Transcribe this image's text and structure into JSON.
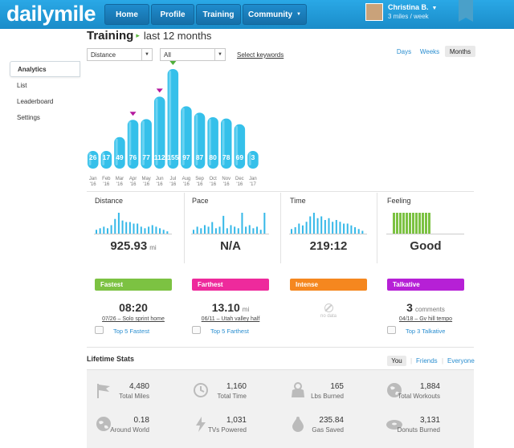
{
  "app": {
    "logo": "dailymile"
  },
  "nav": [
    {
      "label": "Home"
    },
    {
      "label": "Profile"
    },
    {
      "label": "Training"
    },
    {
      "label": "Community",
      "caret": "▼"
    }
  ],
  "user": {
    "name": "Christina B.",
    "caret": "▼",
    "rate": "3 miles / week"
  },
  "sidebar": {
    "items": [
      {
        "label": "Analytics",
        "active": true
      },
      {
        "label": "List"
      },
      {
        "label": "Leaderboard"
      },
      {
        "label": "Settings"
      }
    ]
  },
  "page": {
    "title": "Training",
    "subtitle": "last 12 months"
  },
  "filters": {
    "metric": "Distance",
    "activity": "All",
    "keywords_link": "Select keywords"
  },
  "range": {
    "options": [
      "Days",
      "Weeks",
      "Months"
    ],
    "selected": "Months"
  },
  "chart_data": {
    "type": "bar",
    "categories": [
      "Jan '16",
      "Feb '16",
      "Mar '16",
      "Apr '16",
      "May '16",
      "Jun '16",
      "Jul '16",
      "Aug '16",
      "Sep '16",
      "Oct '16",
      "Nov '16",
      "Dec '16",
      "Jan '17"
    ],
    "month_labels": [
      "Jan",
      "Feb",
      "Mar",
      "Apr",
      "May",
      "Jun",
      "Jul",
      "Aug",
      "Sep",
      "Oct",
      "Nov",
      "Dec",
      "Jan"
    ],
    "year_labels": [
      "'16",
      "'16",
      "'16",
      "'16",
      "'16",
      "'16",
      "'16",
      "'16",
      "'16",
      "'16",
      "'16",
      "'16",
      "'17"
    ],
    "values": [
      26,
      17,
      49,
      76,
      77,
      112,
      155,
      97,
      87,
      80,
      78,
      69,
      3
    ],
    "markers": [
      {
        "index": 3,
        "color": "#b4189e"
      },
      {
        "index": 5,
        "color": "#b4189e"
      },
      {
        "index": 6,
        "color": "#4fae3a"
      }
    ],
    "bar_color": "#35c0ea",
    "title": "",
    "xlabel": "",
    "ylabel": ""
  },
  "summary": [
    {
      "label": "Distance",
      "value": "925.93",
      "unit": "mi",
      "spark": [
        3,
        4,
        5,
        4,
        6,
        10,
        14,
        9,
        8,
        8,
        7,
        7,
        5,
        4,
        5,
        6,
        5,
        4,
        3,
        2
      ]
    },
    {
      "label": "Pace",
      "value": "N/A",
      "unit": "",
      "spark": [
        3,
        5,
        4,
        6,
        5,
        8,
        4,
        5,
        12,
        4,
        6,
        5,
        4,
        14,
        5,
        6,
        4,
        5,
        3,
        14
      ]
    },
    {
      "label": "Time",
      "value": "219:12",
      "unit": "",
      "spark": [
        3,
        4,
        6,
        5,
        7,
        10,
        12,
        9,
        10,
        8,
        9,
        7,
        8,
        7,
        6,
        6,
        5,
        4,
        3,
        2
      ]
    },
    {
      "label": "Feeling",
      "value": "Good",
      "unit": "",
      "spark": [
        14,
        14,
        14,
        14,
        14,
        14,
        14,
        14,
        14,
        14,
        14,
        14
      ]
    }
  ],
  "trophies": [
    {
      "badge": "Fastest",
      "color": "#7cc242",
      "value": "08:20",
      "unit": "",
      "desc": "07/26 – Solo sprint home",
      "link": "Top 5 Fastest"
    },
    {
      "badge": "Farthest",
      "color": "#ee2a9c",
      "value": "13.10",
      "unit": "mi",
      "desc": "06/11 – Utah valley half",
      "link": "Top 5 Farthest"
    },
    {
      "badge": "Intense",
      "color": "#f5871f",
      "value": "",
      "unit": "",
      "desc": "",
      "link": "",
      "nodata": "no data"
    },
    {
      "badge": "Talkative",
      "color": "#b620d6",
      "value": "3",
      "unit": "comments",
      "desc": "04/18 – Gv hill tempo",
      "link": "Top 3 Talkative"
    }
  ],
  "lifetime": {
    "title": "Lifetime Stats",
    "tabs": [
      "You",
      "Friends",
      "Everyone"
    ],
    "selected": "You",
    "stats": [
      {
        "value": "4,480",
        "label": "Total Miles",
        "icon": "flag-icon"
      },
      {
        "value": "1,160",
        "label": "Total Time",
        "icon": "clock-icon"
      },
      {
        "value": "165",
        "label": "Lbs Burned",
        "icon": "kettlebell-icon"
      },
      {
        "value": "1,884",
        "label": "Total Workouts",
        "icon": "globe-icon"
      },
      {
        "value": "0.18",
        "label": "Around World",
        "icon": "world-icon"
      },
      {
        "value": "1,031",
        "label": "TVs Powered",
        "icon": "lightning-icon"
      },
      {
        "value": "235.84",
        "label": "Gas Saved",
        "icon": "gas-drop-icon"
      },
      {
        "value": "3,131",
        "label": "Donuts Burned",
        "icon": "donut-icon"
      }
    ]
  }
}
